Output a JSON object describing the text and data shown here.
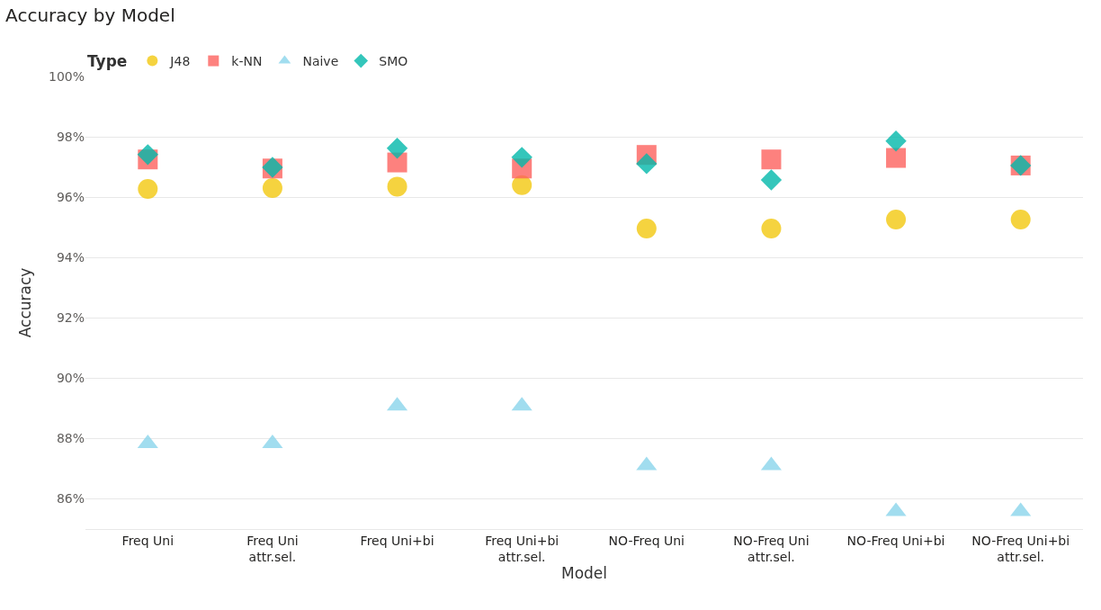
{
  "chart_data": {
    "type": "scatter",
    "title": "Accuracy by Model",
    "xlabel": "Model",
    "ylabel": "Accuracy",
    "legend_title": "Type",
    "categories": [
      "Freq Uni",
      "Freq Uni attr.sel.",
      "Freq Uni+bi",
      "Freq Uni+bi attr.sel.",
      "NO-Freq Uni",
      "NO-Freq Uni attr.sel.",
      "NO-Freq Uni+bi",
      "NO-Freq Uni+bi attr.sel."
    ],
    "series": [
      {
        "name": "J48",
        "color": "#f2c80f",
        "marker": "circle",
        "values": [
          96.27,
          96.3,
          96.35,
          96.4,
          94.96,
          94.96,
          95.26,
          95.26
        ]
      },
      {
        "name": "k-NN",
        "color": "#fd625e",
        "marker": "square",
        "values": [
          97.25,
          96.95,
          97.15,
          96.95,
          97.4,
          97.25,
          97.3,
          97.05
        ]
      },
      {
        "name": "Naive",
        "color": "#8ad4eb",
        "marker": "triangle",
        "values": [
          87.83,
          87.83,
          89.08,
          89.08,
          87.1,
          87.1,
          85.58,
          85.58
        ]
      },
      {
        "name": "SMO",
        "color": "#01b8aa",
        "marker": "diamond",
        "values": [
          97.41,
          96.99,
          97.62,
          97.32,
          97.11,
          96.57,
          97.86,
          97.05
        ]
      }
    ],
    "ylim": [
      85,
      100
    ],
    "yticks": [
      {
        "value": 86,
        "label": "86%"
      },
      {
        "value": 88,
        "label": "88%"
      },
      {
        "value": 90,
        "label": "90%"
      },
      {
        "value": 92,
        "label": "92%"
      },
      {
        "value": 94,
        "label": "94%"
      },
      {
        "value": 96,
        "label": "96%"
      },
      {
        "value": 98,
        "label": "98%"
      },
      {
        "value": 100,
        "label": "100%"
      }
    ],
    "grid": "y",
    "legend": "top left"
  }
}
